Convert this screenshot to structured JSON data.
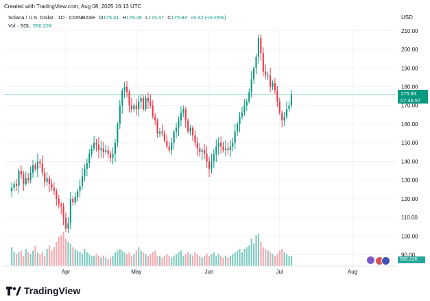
{
  "caption": "Created with TradingView.com, Aug 08, 2025 16:13 UTC",
  "legend": {
    "symbol": "Solana / U.S. Dollar · 1D · COINBASE",
    "o_label": "O",
    "o": "175.41",
    "h_label": "H",
    "h": "179.26",
    "l_label": "L",
    "l": "173.47",
    "c_label": "C",
    "c": "175.83",
    "change": "+0.42 (+0.24%)",
    "vol_label": "Vol · SOL",
    "vol_value": "550.22K"
  },
  "axis_currency": "USD",
  "price_tag": {
    "price": "175.83",
    "countdown": "07:46:57"
  },
  "volume_tag": "550.22K",
  "logo_text": "TradingView",
  "colors": {
    "up": "#089981",
    "down": "#f23645",
    "vol_up": "#7fcbc0",
    "vol_down": "#f5a9ae",
    "grid": "#f0f3fa"
  },
  "chart_data": {
    "type": "candlestick",
    "symbol": "SOLUSD",
    "interval": "1D",
    "ylim": [
      88,
      212
    ],
    "y_ticks": [
      90,
      100,
      110,
      120,
      130,
      140,
      150,
      160,
      170,
      180,
      190,
      200,
      210
    ],
    "x_ticks": [
      {
        "label": "Apr",
        "date": "2025-04-01"
      },
      {
        "label": "May",
        "date": "2025-05-01"
      },
      {
        "label": "Jun",
        "date": "2025-06-01"
      },
      {
        "label": "Jul",
        "date": "2025-07-01"
      },
      {
        "label": "Aug",
        "date": "2025-08-01"
      }
    ],
    "last_price": 175.83,
    "start_date": "2025-03-09",
    "closes": [
      126,
      128,
      127,
      135,
      133,
      128,
      131,
      130,
      134,
      138,
      136,
      140,
      139,
      134,
      129,
      131,
      128,
      126,
      124,
      120,
      117,
      116,
      110,
      104,
      107,
      120,
      118,
      121,
      124,
      127,
      132,
      136,
      139,
      144,
      147,
      150,
      149,
      146,
      147,
      145,
      146,
      144,
      142,
      144,
      150,
      160,
      170,
      178,
      180,
      177,
      170,
      168,
      170,
      168,
      172,
      174,
      168,
      174,
      172,
      170,
      164,
      162,
      155,
      156,
      155,
      151,
      148,
      146,
      150,
      156,
      158,
      162,
      166,
      168,
      162,
      156,
      158,
      154,
      150,
      147,
      145,
      146,
      144,
      140,
      136,
      140,
      144,
      148,
      150,
      148,
      146,
      147,
      146,
      148,
      150,
      156,
      160,
      164,
      166,
      170,
      172,
      177,
      184,
      190,
      196,
      206,
      198,
      188,
      186,
      186,
      180,
      182,
      178,
      172,
      166,
      162,
      164,
      168,
      170,
      175.83
    ],
    "volumes": [
      0.55,
      0.4,
      0.35,
      0.4,
      0.45,
      0.3,
      0.5,
      0.4,
      0.35,
      0.45,
      0.6,
      0.4,
      0.35,
      0.4,
      0.3,
      0.5,
      0.6,
      0.45,
      0.55,
      0.7,
      0.85,
      0.9,
      1.0,
      0.8,
      0.7,
      0.65,
      0.55,
      0.5,
      0.45,
      0.4,
      0.35,
      0.5,
      0.4,
      0.35,
      0.3,
      0.3,
      0.35,
      0.3,
      0.25,
      0.3,
      0.25,
      0.2,
      0.25,
      0.3,
      0.4,
      0.45,
      0.5,
      0.45,
      0.4,
      0.35,
      0.4,
      0.3,
      0.35,
      0.45,
      0.55,
      0.45,
      0.4,
      0.35,
      0.3,
      0.35,
      0.4,
      0.45,
      0.3,
      0.3,
      0.25,
      0.3,
      0.35,
      0.3,
      0.25,
      0.3,
      0.35,
      0.4,
      0.45,
      0.3,
      0.35,
      0.4,
      0.35,
      0.3,
      0.4,
      0.35,
      0.3,
      0.25,
      0.3,
      0.35,
      0.3,
      0.35,
      0.4,
      0.3,
      0.35,
      0.3,
      0.25,
      0.3,
      0.25,
      0.3,
      0.35,
      0.4,
      0.45,
      0.5,
      0.4,
      0.5,
      0.55,
      0.6,
      0.8,
      0.65,
      0.9,
      0.95,
      0.7,
      0.55,
      0.5,
      0.45,
      0.4,
      0.35,
      0.3,
      0.35,
      0.45,
      0.5,
      0.4,
      0.35,
      0.3,
      0.3
    ]
  }
}
